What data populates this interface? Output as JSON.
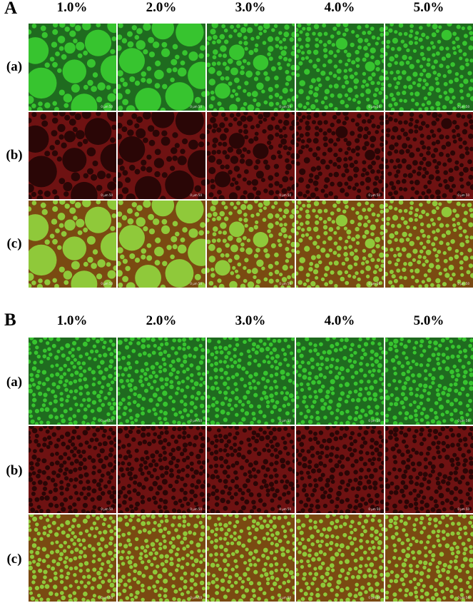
{
  "figure": {
    "panels": [
      {
        "letter": "A",
        "columns": [
          "1.0%",
          "2.0%",
          "3.0%",
          "4.0%",
          "5.0%"
        ],
        "rows": [
          {
            "label": "(a)",
            "channel": "green"
          },
          {
            "label": "(b)",
            "channel": "red"
          },
          {
            "label": "(c)",
            "channel": "merge"
          }
        ],
        "scale_bar": "0    μm  50"
      },
      {
        "letter": "B",
        "columns": [
          "1.0%",
          "2.0%",
          "3.0%",
          "4.0%",
          "5.0%"
        ],
        "rows": [
          {
            "label": "(a)",
            "channel": "green"
          },
          {
            "label": "(b)",
            "channel": "red"
          },
          {
            "label": "(c)",
            "channel": "merge"
          }
        ],
        "scale_bar": "0    μm  50"
      }
    ],
    "colors": {
      "green_bg": "#1f6b1f",
      "green_droplet": "#37c42f",
      "red_bg": "#2a0606",
      "red_network": "#6e1212",
      "merge_bg": "#7a4a12",
      "merge_droplet": "#8fc93a"
    }
  }
}
